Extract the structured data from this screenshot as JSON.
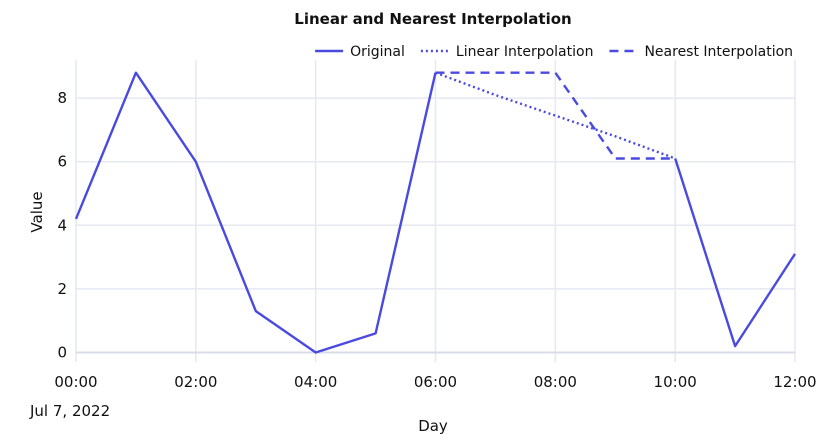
{
  "chart_data": {
    "type": "line",
    "title": "Linear and Nearest Interpolation",
    "xlabel": "Day",
    "ylabel": "Value",
    "x_date_label": "Jul 7, 2022",
    "x_tick_labels": [
      "00:00",
      "02:00",
      "04:00",
      "06:00",
      "08:00",
      "10:00",
      "12:00"
    ],
    "y_tick_labels": [
      "0",
      "2",
      "4",
      "6",
      "8"
    ],
    "xlim": [
      "00:00",
      "12:00"
    ],
    "ylim": [
      -0.3,
      9.2
    ],
    "grid": true,
    "legend_position": "top-right",
    "series": [
      {
        "name": "Original",
        "style": "solid",
        "color": "#4a4ae0",
        "x": [
          "00:00",
          "01:00",
          "02:00",
          "03:00",
          "04:00",
          "05:00",
          "06:00",
          "07:00",
          "08:00",
          "09:00",
          "10:00",
          "11:00",
          "12:00"
        ],
        "y": [
          4.2,
          8.8,
          6.0,
          1.3,
          0.0,
          0.6,
          8.8,
          null,
          null,
          null,
          6.1,
          0.2,
          3.1
        ]
      },
      {
        "name": "Linear Interpolation",
        "style": "dotted",
        "color": "#4a4ae0",
        "x": [
          "06:00",
          "07:00",
          "08:00",
          "09:00",
          "10:00"
        ],
        "y": [
          8.8,
          8.1,
          7.45,
          6.8,
          6.1
        ]
      },
      {
        "name": "Nearest Interpolation",
        "style": "dashed",
        "color": "#4a4ae0",
        "x": [
          "06:00",
          "07:00",
          "08:00",
          "09:00",
          "10:00"
        ],
        "y": [
          8.8,
          8.8,
          8.8,
          6.1,
          6.1
        ]
      }
    ]
  }
}
